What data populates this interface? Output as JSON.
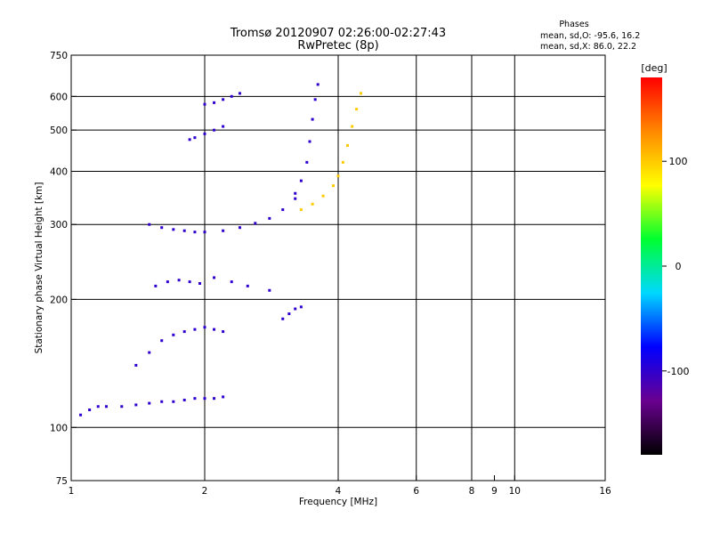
{
  "chart_data": {
    "type": "scatter",
    "title": "Tromsø 20120907 02:26:00-02:27:43",
    "subtitle": "RwPretec (8p)",
    "xlabel": "Frequency [MHz]",
    "ylabel": "Stationary phase Virtual Height [km]",
    "x_scale": "log",
    "y_scale": "log",
    "xlim": [
      1,
      16
    ],
    "ylim": [
      75,
      750
    ],
    "x_ticks": [
      1,
      2,
      4,
      6,
      8,
      9,
      10,
      16
    ],
    "x_tick_labels": [
      "1",
      "2",
      "4",
      "6",
      "8",
      "9",
      "10",
      "16"
    ],
    "x_gridlines": [
      2,
      4,
      6,
      8,
      10
    ],
    "y_ticks": [
      75,
      100,
      200,
      300,
      400,
      500,
      600,
      750
    ],
    "y_tick_labels": [
      "75",
      "100",
      "200",
      "300",
      "400",
      "500",
      "600",
      "750"
    ],
    "y_gridlines": [
      100,
      200,
      300,
      400,
      500,
      600
    ],
    "grid": true,
    "stats": {
      "heading": "Phases",
      "line1": "mean, sd,O: -95.6, 16.2",
      "line2": "mean, sd,X:  86.0, 22.2"
    },
    "colorbar": {
      "label": "[deg]",
      "range": [
        -180,
        180
      ],
      "tick_values": [
        100,
        0,
        -100
      ],
      "tick_labels": [
        "100",
        "0",
        "-100"
      ],
      "colormap": [
        "#000000",
        "#6a0090",
        "#0000ff",
        "#00d8ff",
        "#00ff30",
        "#ffff00",
        "#ff8800",
        "#ff0000"
      ]
    },
    "series": [
      {
        "x": [
          1.05,
          1.1,
          1.15,
          1.2,
          1.3,
          1.4,
          1.5,
          1.6,
          1.7,
          1.8,
          1.9,
          2.0,
          2.1,
          2.2
        ],
        "y": [
          107,
          110,
          112,
          112,
          112,
          113,
          114,
          115,
          115,
          116,
          117,
          117,
          117,
          118
        ],
        "phase": -100
      },
      {
        "x": [
          1.4,
          1.5,
          1.6,
          1.7,
          1.8,
          1.9,
          2.0,
          2.1,
          2.2
        ],
        "y": [
          140,
          150,
          160,
          165,
          168,
          170,
          172,
          170,
          168
        ],
        "phase": -100
      },
      {
        "x": [
          1.5,
          1.6,
          1.7,
          1.8,
          1.9,
          2.0,
          2.2,
          2.4,
          2.6,
          2.8,
          3.0,
          3.2
        ],
        "y": [
          300,
          295,
          292,
          290,
          288,
          288,
          290,
          295,
          302,
          310,
          325,
          345
        ],
        "phase": -100
      },
      {
        "x": [
          3.2,
          3.3,
          3.4,
          3.45,
          3.5,
          3.55,
          3.6
        ],
        "y": [
          355,
          380,
          420,
          470,
          530,
          590,
          640
        ],
        "phase": -100
      },
      {
        "x": [
          3.3,
          3.5,
          3.7,
          3.9,
          4.0,
          4.1,
          4.2,
          4.3,
          4.4,
          4.5
        ],
        "y": [
          325,
          335,
          350,
          370,
          390,
          420,
          460,
          510,
          560,
          610
        ],
        "phase": 100
      },
      {
        "x": [
          1.85,
          1.9,
          2.0,
          2.1,
          2.2
        ],
        "y": [
          475,
          480,
          490,
          500,
          510
        ],
        "phase": -100
      },
      {
        "x": [
          2.0,
          2.1,
          2.2,
          2.3,
          2.4
        ],
        "y": [
          575,
          580,
          590,
          600,
          610
        ],
        "phase": -100
      },
      {
        "x": [
          1.55,
          1.65,
          1.75,
          1.85,
          1.95,
          2.1,
          2.3,
          2.5,
          2.8
        ],
        "y": [
          215,
          220,
          222,
          220,
          218,
          225,
          220,
          215,
          210
        ],
        "phase": -100
      },
      {
        "x": [
          3.0,
          3.1,
          3.2,
          3.3
        ],
        "y": [
          180,
          185,
          190,
          192
        ],
        "phase": -100
      }
    ]
  }
}
